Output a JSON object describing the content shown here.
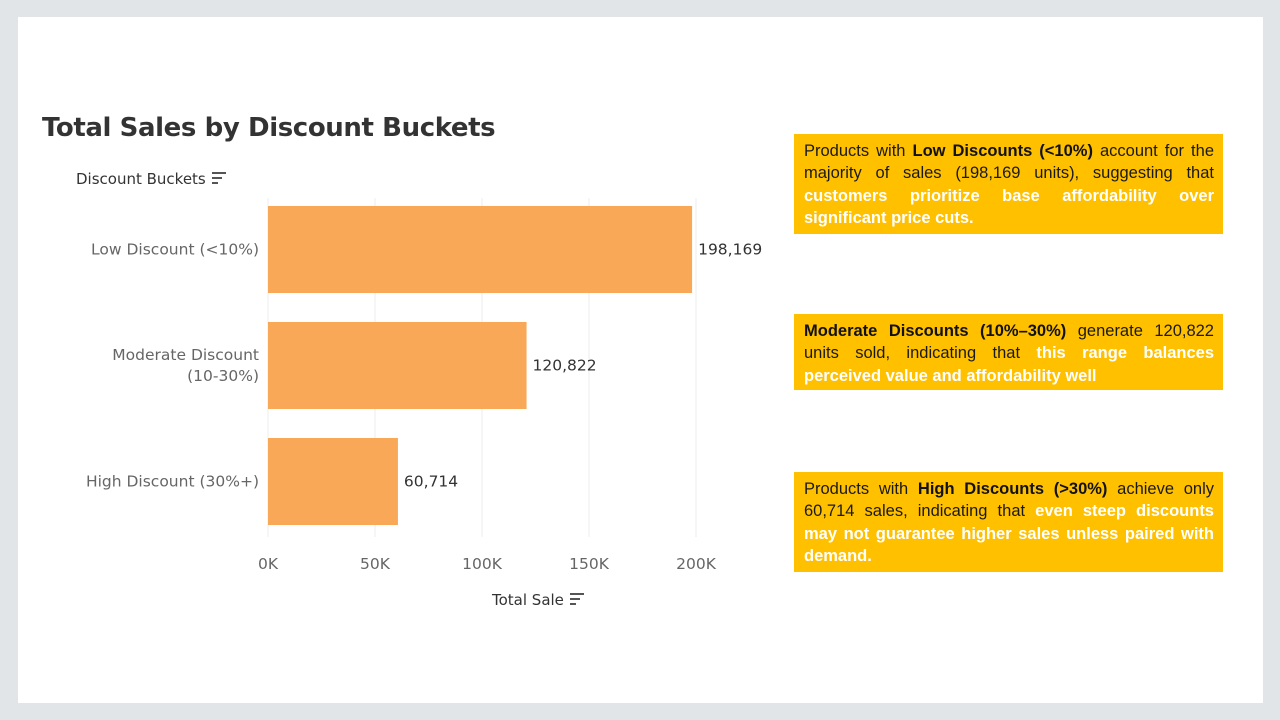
{
  "chart_data": {
    "type": "bar",
    "orientation": "horizontal",
    "title": "Total Sales by Discount Buckets",
    "ylabel": "Discount Buckets",
    "xlabel": "Total Sale",
    "categories": [
      "Low Discount (<10%)",
      "Moderate Discount (10-30%)",
      "High Discount (30%+)"
    ],
    "category_lines": [
      [
        "Low Discount (<10%)"
      ],
      [
        "Moderate Discount",
        "(10-30%)"
      ],
      [
        "High Discount (30%+)"
      ]
    ],
    "values": [
      198169,
      120822,
      60714
    ],
    "value_labels": [
      "198,169",
      "120,822",
      "60,714"
    ],
    "xticks": [
      0,
      50000,
      100000,
      150000,
      200000
    ],
    "xtick_labels": [
      "0K",
      "50K",
      "100K",
      "150K",
      "200K"
    ],
    "xlim": [
      0,
      240000
    ],
    "grid": true,
    "bar_color": "#f8a857"
  },
  "notes": [
    {
      "parts": [
        {
          "t": "Products with ",
          "s": "n"
        },
        {
          "t": "Low Discounts (<10%)",
          "s": "b"
        },
        {
          "t": " account for the majority of sales (198,169 units), suggesting that ",
          "s": "n"
        },
        {
          "t": "customers prioritize base affordability over significant price cuts.",
          "s": "w"
        }
      ]
    },
    {
      "parts": [
        {
          "t": "Moderate Discounts (10%–30%)",
          "s": "b"
        },
        {
          "t": " generate 120,822 units sold, indicating that ",
          "s": "n"
        },
        {
          "t": "this range balances perceived value and affordability well",
          "s": "w"
        }
      ]
    },
    {
      "parts": [
        {
          "t": "Products with ",
          "s": "n"
        },
        {
          "t": "High Discounts (>30%)",
          "s": "b"
        },
        {
          "t": " achieve only 60,714 sales, indicating that ",
          "s": "n"
        },
        {
          "t": "even steep discounts may not guarantee higher sales unless paired with demand.",
          "s": "w"
        }
      ]
    }
  ],
  "colors": {
    "note_background": "#ffc000",
    "highlight_text": "#ffffff",
    "slide_background": "#ffffff",
    "frame": "#e2e5e8"
  },
  "icons": {
    "y_sort": "sort-descending-icon",
    "x_sort": "sort-descending-icon"
  }
}
